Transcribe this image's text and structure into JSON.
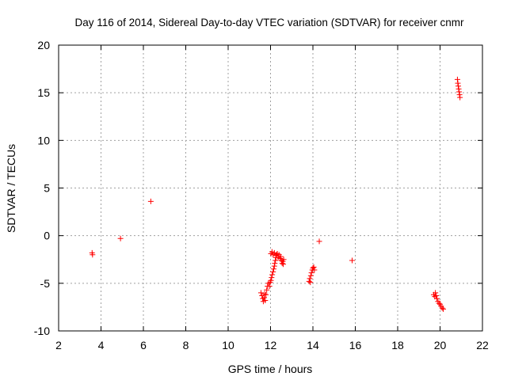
{
  "chart_data": {
    "type": "scatter",
    "title": "Day 116 of 2014, Sidereal Day-to-day VTEC variation (SDTVAR) for receiver cnmr",
    "xlabel": "GPS time / hours",
    "ylabel": "SDTVAR / TECUs",
    "xlim": [
      2,
      22
    ],
    "ylim": [
      -10,
      20
    ],
    "xticks": [
      2,
      4,
      6,
      8,
      10,
      12,
      14,
      16,
      18,
      20,
      22
    ],
    "yticks": [
      -10,
      -5,
      0,
      5,
      10,
      15,
      20
    ],
    "grid": true,
    "marker": "+",
    "marker_color": "#ff0000",
    "series": [
      {
        "name": "SDTVAR",
        "points": [
          [
            3.58,
            -1.8
          ],
          [
            3.6,
            -2.0
          ],
          [
            4.92,
            -0.3
          ],
          [
            6.35,
            3.6
          ],
          [
            11.55,
            -6.0
          ],
          [
            11.6,
            -6.3
          ],
          [
            11.63,
            -6.6
          ],
          [
            11.66,
            -6.9
          ],
          [
            11.7,
            -6.5
          ],
          [
            11.72,
            -6.1
          ],
          [
            11.75,
            -6.8
          ],
          [
            11.78,
            -6.2
          ],
          [
            11.82,
            -5.7
          ],
          [
            11.86,
            -5.3
          ],
          [
            11.9,
            -5.0
          ],
          [
            11.95,
            -5.3
          ],
          [
            11.98,
            -4.9
          ],
          [
            12.02,
            -4.7
          ],
          [
            12.05,
            -4.4
          ],
          [
            12.08,
            -4.1
          ],
          [
            12.12,
            -3.8
          ],
          [
            12.15,
            -3.5
          ],
          [
            12.18,
            -3.2
          ],
          [
            12.2,
            -2.9
          ],
          [
            12.23,
            -2.6
          ],
          [
            12.26,
            -2.3
          ],
          [
            12.28,
            -2.0
          ],
          [
            12.02,
            -1.9
          ],
          [
            12.07,
            -1.7
          ],
          [
            12.12,
            -2.0
          ],
          [
            12.18,
            -1.8
          ],
          [
            12.25,
            -2.1
          ],
          [
            12.32,
            -1.9
          ],
          [
            12.36,
            -2.3
          ],
          [
            12.4,
            -2.0
          ],
          [
            12.45,
            -2.4
          ],
          [
            12.48,
            -2.2
          ],
          [
            12.52,
            -2.6
          ],
          [
            12.55,
            -2.9
          ],
          [
            12.58,
            -2.7
          ],
          [
            12.62,
            -2.5
          ],
          [
            12.6,
            -3.0
          ],
          [
            13.82,
            -4.8
          ],
          [
            13.85,
            -4.5
          ],
          [
            13.88,
            -4.9
          ],
          [
            13.9,
            -4.2
          ],
          [
            13.93,
            -3.9
          ],
          [
            13.97,
            -3.6
          ],
          [
            14.0,
            -3.4
          ],
          [
            14.04,
            -3.3
          ],
          [
            14.07,
            -3.6
          ],
          [
            14.3,
            -0.6
          ],
          [
            15.85,
            -2.6
          ],
          [
            19.7,
            -6.2
          ],
          [
            19.75,
            -6.4
          ],
          [
            19.78,
            -6.0
          ],
          [
            19.82,
            -6.3
          ],
          [
            19.85,
            -6.6
          ],
          [
            19.9,
            -6.9
          ],
          [
            19.95,
            -7.1
          ],
          [
            20.0,
            -7.2
          ],
          [
            20.05,
            -7.4
          ],
          [
            20.1,
            -7.6
          ],
          [
            20.15,
            -7.7
          ],
          [
            20.82,
            16.4
          ],
          [
            20.84,
            16.0
          ],
          [
            20.86,
            15.7
          ],
          [
            20.88,
            15.4
          ],
          [
            20.9,
            15.1
          ],
          [
            20.92,
            14.8
          ],
          [
            20.94,
            14.5
          ]
        ]
      }
    ]
  }
}
